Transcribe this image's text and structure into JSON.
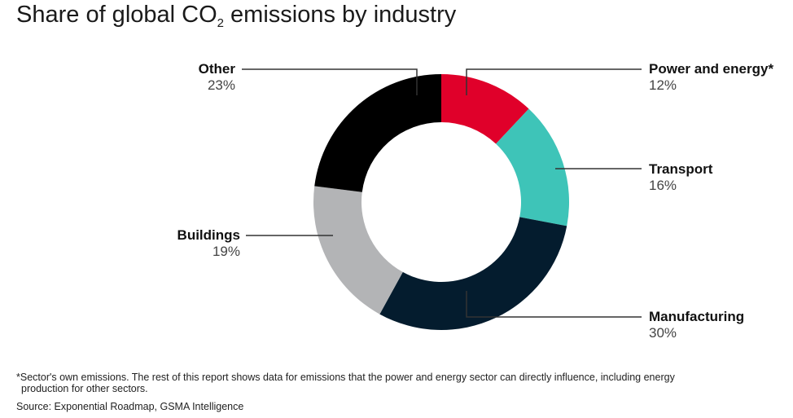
{
  "title_prefix": "Share of global CO",
  "title_sub": "2",
  "title_suffix": " emissions by industry",
  "chart_data": {
    "type": "pie",
    "donut": true,
    "title": "Share of global CO2 emissions by industry",
    "slices": [
      {
        "name": "Power and energy",
        "marker": "*",
        "value": 12,
        "label": "12%",
        "color": "#e0002a"
      },
      {
        "name": "Transport",
        "marker": "",
        "value": 16,
        "label": "16%",
        "color": "#3ec4b8"
      },
      {
        "name": "Manufacturing",
        "marker": "",
        "value": 30,
        "label": "30%",
        "color": "#041c2e"
      },
      {
        "name": "Buildings",
        "marker": "",
        "value": 19,
        "label": "19%",
        "color": "#b3b4b6"
      },
      {
        "name": "Other",
        "marker": "",
        "value": 23,
        "label": "23%",
        "color": "#000000"
      }
    ]
  },
  "footnote_line1": "*Sector's own emissions. The rest of this report shows data for emissions that the power and energy sector can directly influence, including energy",
  "footnote_line2": "production for other sectors.",
  "source": "Source: Exponential Roadmap, GSMA Intelligence"
}
